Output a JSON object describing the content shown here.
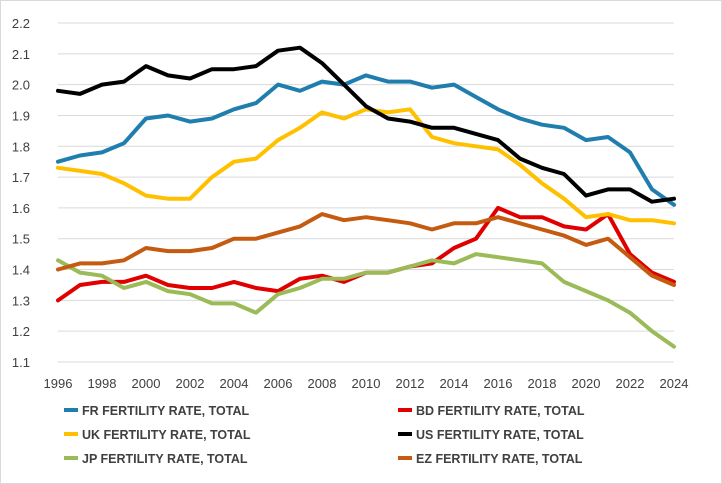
{
  "chart_data": {
    "type": "line",
    "x": [
      1996,
      1997,
      1998,
      1999,
      2000,
      2001,
      2002,
      2003,
      2004,
      2005,
      2006,
      2007,
      2008,
      2009,
      2010,
      2011,
      2012,
      2013,
      2014,
      2015,
      2016,
      2017,
      2018,
      2019,
      2020,
      2021,
      2022,
      2023,
      2024
    ],
    "x_tick_labels": [
      "1996",
      "1998",
      "2000",
      "2002",
      "2004",
      "2006",
      "2008",
      "2010",
      "2012",
      "2014",
      "2016",
      "2018",
      "2020",
      "2022",
      "2024"
    ],
    "ylim": [
      1.1,
      2.2
    ],
    "y_tick_labels": [
      "1.1",
      "1.2",
      "1.3",
      "1.4",
      "1.5",
      "1.6",
      "1.7",
      "1.8",
      "1.9",
      "2.0",
      "2.1",
      "2.2"
    ],
    "grid": "horizontal",
    "legend_position": "bottom",
    "series": [
      {
        "name": "FR FERTILITY RATE, TOTAL",
        "color": "#1f7ead",
        "values": [
          1.75,
          1.77,
          1.78,
          1.81,
          1.89,
          1.9,
          1.88,
          1.89,
          1.92,
          1.94,
          2.0,
          1.98,
          2.01,
          2.0,
          2.03,
          2.01,
          2.01,
          1.99,
          2.0,
          1.96,
          1.92,
          1.89,
          1.87,
          1.86,
          1.82,
          1.83,
          1.78,
          1.66,
          1.61
        ]
      },
      {
        "name": "BD FERTILITY RATE, TOTAL",
        "color": "#e00000",
        "values": [
          1.3,
          1.35,
          1.36,
          1.36,
          1.38,
          1.35,
          1.34,
          1.34,
          1.36,
          1.34,
          1.33,
          1.37,
          1.38,
          1.36,
          1.39,
          1.39,
          1.41,
          1.42,
          1.47,
          1.5,
          1.6,
          1.57,
          1.57,
          1.54,
          1.53,
          1.58,
          1.45,
          1.39,
          1.36
        ]
      },
      {
        "name": "UK FERTILITY RATE, TOTAL",
        "color": "#ffc000",
        "values": [
          1.73,
          1.72,
          1.71,
          1.68,
          1.64,
          1.63,
          1.63,
          1.7,
          1.75,
          1.76,
          1.82,
          1.86,
          1.91,
          1.89,
          1.92,
          1.91,
          1.92,
          1.83,
          1.81,
          1.8,
          1.79,
          1.74,
          1.68,
          1.63,
          1.57,
          1.58,
          1.56,
          1.56,
          1.55
        ]
      },
      {
        "name": "US FERTILITY RATE, TOTAL",
        "color": "#000000",
        "values": [
          1.98,
          1.97,
          2.0,
          2.01,
          2.06,
          2.03,
          2.02,
          2.05,
          2.05,
          2.06,
          2.11,
          2.12,
          2.07,
          2.0,
          1.93,
          1.89,
          1.88,
          1.86,
          1.86,
          1.84,
          1.82,
          1.76,
          1.73,
          1.71,
          1.64,
          1.66,
          1.66,
          1.62,
          1.63
        ]
      },
      {
        "name": "JP FERTILITY RATE, TOTAL",
        "color": "#9bbb59",
        "values": [
          1.43,
          1.39,
          1.38,
          1.34,
          1.36,
          1.33,
          1.32,
          1.29,
          1.29,
          1.26,
          1.32,
          1.34,
          1.37,
          1.37,
          1.39,
          1.39,
          1.41,
          1.43,
          1.42,
          1.45,
          1.44,
          1.43,
          1.42,
          1.36,
          1.33,
          1.3,
          1.26,
          1.2,
          1.15
        ]
      },
      {
        "name": "EZ FERTILITY RATE, TOTAL",
        "color": "#c55a11",
        "values": [
          1.4,
          1.42,
          1.42,
          1.43,
          1.47,
          1.46,
          1.46,
          1.47,
          1.5,
          1.5,
          1.52,
          1.54,
          1.58,
          1.56,
          1.57,
          1.56,
          1.55,
          1.53,
          1.55,
          1.55,
          1.57,
          1.55,
          1.53,
          1.51,
          1.48,
          1.5,
          1.44,
          1.38,
          1.35
        ]
      }
    ]
  }
}
